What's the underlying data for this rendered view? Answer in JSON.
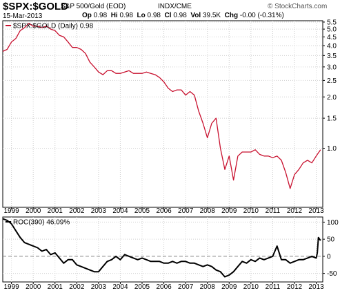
{
  "header": {
    "symbol": "$SPX:$GOLD",
    "description": "S&P 500/Gold (EOD)",
    "exchange": "INDX/CME",
    "brand": "© StockCharts.com",
    "date": "15-Mar-2013",
    "stats": [
      {
        "label": "Op",
        "value": "0.98"
      },
      {
        "label": "Hi",
        "value": "0.98"
      },
      {
        "label": "Lo",
        "value": "0.98"
      },
      {
        "label": "Cl",
        "value": "0.98"
      },
      {
        "label": "Vol",
        "value": "39.5K"
      },
      {
        "label": "Chg",
        "value": "-0.00 (-0.31%)"
      }
    ]
  },
  "colors": {
    "price_line": "#c8102e",
    "roc_line": "#000000",
    "grid": "#d0d0d0",
    "zero_line": "#888888"
  },
  "chart_data": [
    {
      "type": "line",
      "legend": "$SPX:$GOLD (Daily) 0.98",
      "yscale": "log",
      "x_ticks": [
        "1999",
        "2000",
        "2001",
        "2002",
        "2003",
        "2004",
        "2005",
        "2006",
        "2007",
        "2008",
        "2009",
        "2010",
        "2011",
        "2012",
        "2013"
      ],
      "y_ticks": [
        "5.5",
        "5.0",
        "4.5",
        "4.0",
        "3.5",
        "3.0",
        "2.5",
        "2.0",
        "1.5",
        "1.0"
      ],
      "ylim": [
        0.45,
        5.6
      ],
      "xlim": [
        1998.6,
        2013.3
      ],
      "series": [
        {
          "x": [
            1998.6,
            1998.8,
            1999.0,
            1999.2,
            1999.4,
            1999.6,
            1999.8,
            2000.0,
            2000.2,
            2000.4,
            2000.6,
            2000.8,
            2001.0,
            2001.2,
            2001.4,
            2001.6,
            2001.8,
            2002.0,
            2002.2,
            2002.4,
            2002.6,
            2002.8,
            2003.0,
            2003.2,
            2003.4,
            2003.6,
            2003.8,
            2004.0,
            2004.2,
            2004.4,
            2004.6,
            2004.8,
            2005.0,
            2005.2,
            2005.4,
            2005.6,
            2005.8,
            2006.0,
            2006.2,
            2006.4,
            2006.6,
            2006.8,
            2007.0,
            2007.2,
            2007.4,
            2007.6,
            2007.8,
            2008.0,
            2008.2,
            2008.4,
            2008.6,
            2008.8,
            2009.0,
            2009.2,
            2009.4,
            2009.6,
            2009.8,
            2010.0,
            2010.2,
            2010.4,
            2010.6,
            2010.8,
            2011.0,
            2011.2,
            2011.4,
            2011.6,
            2011.8,
            2012.0,
            2012.2,
            2012.4,
            2012.6,
            2012.8,
            2013.0,
            2013.2
          ],
          "values": [
            3.7,
            3.8,
            4.2,
            4.4,
            4.9,
            5.1,
            5.4,
            5.2,
            5.2,
            5.1,
            5.2,
            5.0,
            4.9,
            4.6,
            4.5,
            4.2,
            3.9,
            3.9,
            3.8,
            3.6,
            3.2,
            3.0,
            2.8,
            2.7,
            2.85,
            2.85,
            2.75,
            2.75,
            2.8,
            2.85,
            2.75,
            2.75,
            2.75,
            2.8,
            2.75,
            2.7,
            2.6,
            2.45,
            2.25,
            2.15,
            2.2,
            2.2,
            2.05,
            2.15,
            2.05,
            1.65,
            1.4,
            1.15,
            1.4,
            1.5,
            1.0,
            0.75,
            0.9,
            0.65,
            0.9,
            0.95,
            0.95,
            0.95,
            0.98,
            0.92,
            0.9,
            0.9,
            0.88,
            0.9,
            0.85,
            0.72,
            0.58,
            0.7,
            0.75,
            0.82,
            0.85,
            0.82,
            0.9,
            0.98
          ]
        }
      ]
    },
    {
      "type": "line",
      "legend": "ROC(390) 46.09%",
      "x_ticks": [
        "1999",
        "2000",
        "2001",
        "2002",
        "2003",
        "2004",
        "2005",
        "2006",
        "2007",
        "2008",
        "2009",
        "2010",
        "2011",
        "2012",
        "2013"
      ],
      "y_ticks": [
        "100",
        "50",
        "0",
        "-50"
      ],
      "ylim": [
        -75,
        115
      ],
      "xlim": [
        1998.6,
        2013.3
      ],
      "series": [
        {
          "x": [
            1998.6,
            1998.8,
            1999.0,
            1999.2,
            1999.4,
            1999.6,
            1999.8,
            2000.0,
            2000.2,
            2000.4,
            2000.6,
            2000.8,
            2001.0,
            2001.2,
            2001.4,
            2001.6,
            2001.8,
            2002.0,
            2002.2,
            2002.4,
            2002.6,
            2002.8,
            2003.0,
            2003.2,
            2003.4,
            2003.6,
            2003.8,
            2004.0,
            2004.2,
            2004.4,
            2004.6,
            2004.8,
            2005.0,
            2005.2,
            2005.4,
            2005.6,
            2005.8,
            2006.0,
            2006.2,
            2006.4,
            2006.6,
            2006.8,
            2007.0,
            2007.2,
            2007.4,
            2007.6,
            2007.8,
            2008.0,
            2008.2,
            2008.4,
            2008.6,
            2008.8,
            2009.0,
            2009.2,
            2009.4,
            2009.6,
            2009.8,
            2010.0,
            2010.2,
            2010.4,
            2010.6,
            2010.8,
            2011.0,
            2011.2,
            2011.4,
            2011.6,
            2011.8,
            2012.0,
            2012.2,
            2012.4,
            2012.6,
            2012.8,
            2013.0,
            2013.05,
            2013.1,
            2013.2
          ],
          "values": [
            110,
            105,
            95,
            75,
            55,
            40,
            35,
            30,
            25,
            15,
            20,
            5,
            10,
            -5,
            -20,
            -10,
            -10,
            -25,
            -30,
            -35,
            -40,
            -45,
            -45,
            -30,
            -15,
            -10,
            0,
            -10,
            5,
            0,
            -5,
            -10,
            -5,
            -10,
            -15,
            -15,
            -15,
            -20,
            -20,
            -15,
            -20,
            -15,
            -15,
            -20,
            -20,
            -25,
            -30,
            -25,
            -30,
            -40,
            -45,
            -60,
            -55,
            -45,
            -30,
            -15,
            -20,
            -10,
            -15,
            -5,
            -10,
            -5,
            0,
            30,
            -10,
            -10,
            -20,
            -15,
            -10,
            -10,
            -5,
            0,
            -5,
            10,
            55,
            46
          ]
        }
      ]
    }
  ]
}
